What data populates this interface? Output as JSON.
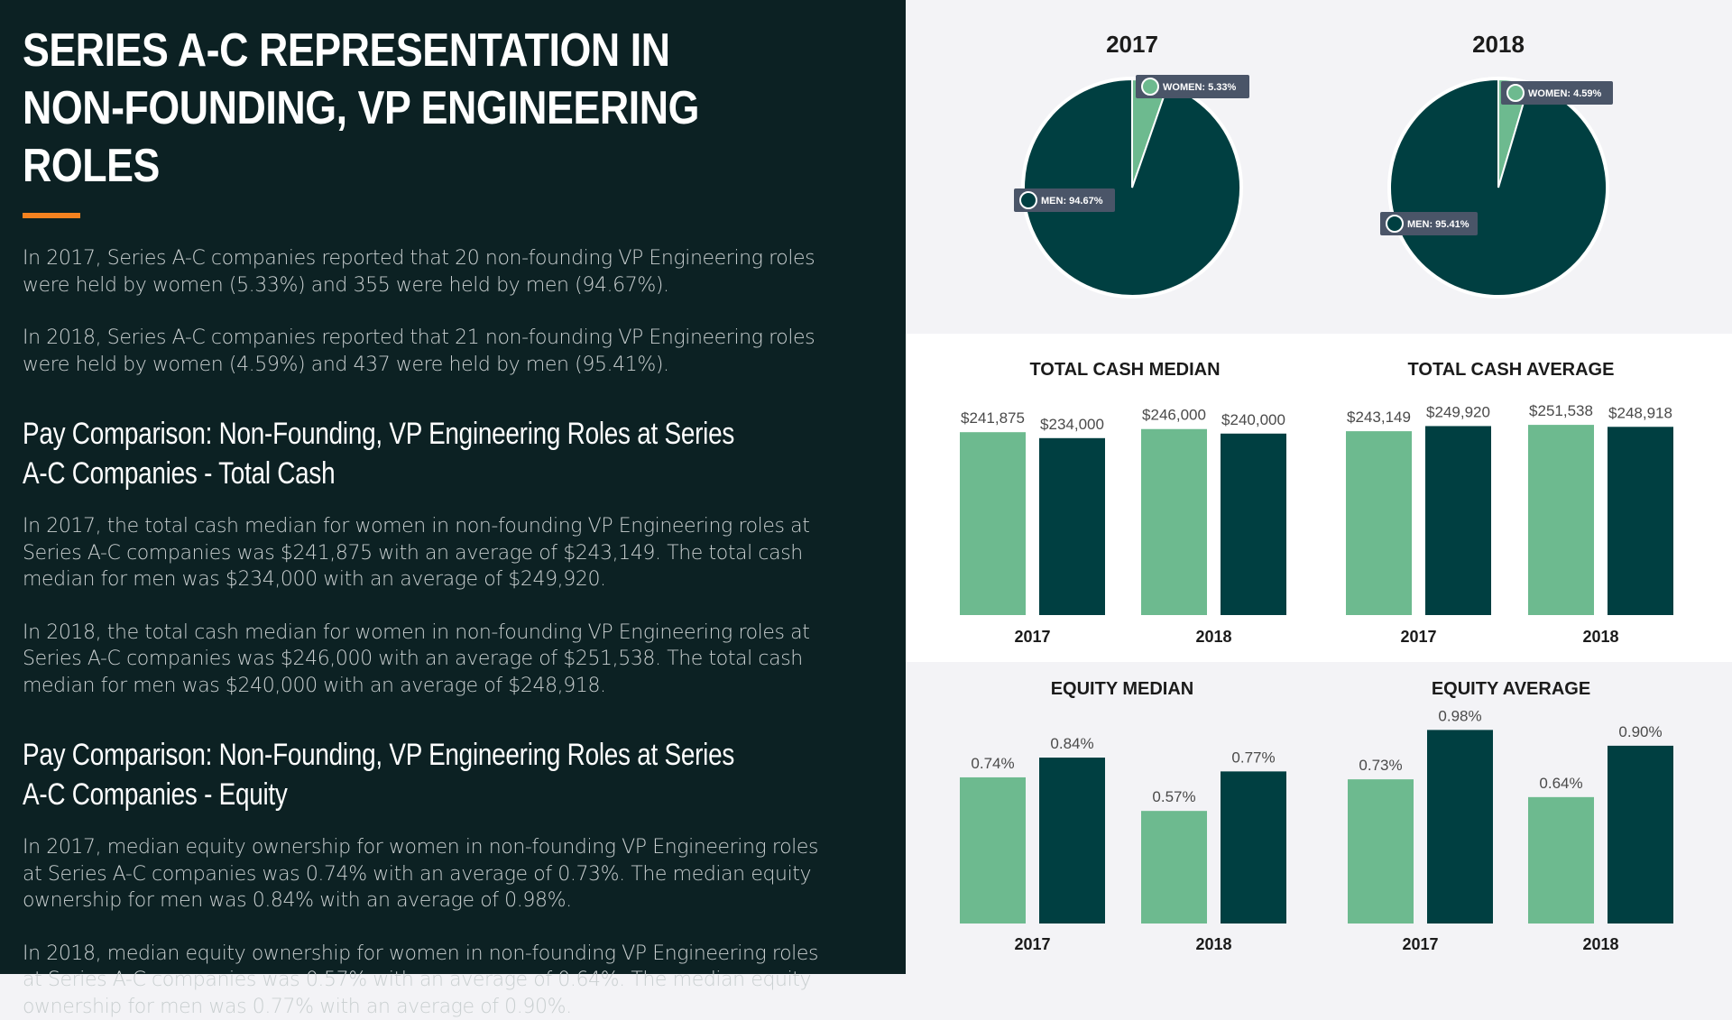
{
  "left": {
    "title": "SERIES A-C REPRESENTATION IN NON-FOUNDING, VP ENGINEERING ROLES",
    "p2017": "In 2017, Series A-C companies reported that 20 non-founding VP Engineering roles were held by women (5.33%) and 355 were held by men (94.67%).",
    "p2018": "In 2018, Series A-C companies reported that 21 non-founding VP Engineering roles were held by women (4.59%) and 437 were held by men (95.41%).",
    "cash_heading": "Pay Comparison: Non-Founding, VP Engineering Roles at Series A-C Companies - Total Cash",
    "cash_p2017": "In 2017, the total cash median for women in non-founding VP Engineering roles at Series A-C companies was $241,875 with an average of $243,149. The total cash median for men was $234,000 with an average of $249,920.",
    "cash_p2018": "In 2018, the total cash median for women in non-founding VP Engineering roles at Series A-C companies was $246,000 with an average of $251,538. The total cash median for men was $240,000 with an average of $248,918.",
    "equity_heading": "Pay Comparison: Non-Founding, VP Engineering Roles at Series A-C Companies - Equity",
    "equity_p2017": "In 2017, median equity ownership for women in non-founding VP Engineering roles at Series A-C companies was 0.74% with an average of 0.73%. The median equity ownership for men was 0.84% with an average of 0.98%.",
    "equity_p2018": "In 2018, median equity ownership for women in non-founding VP Engineering roles at Series A-C companies was 0.57% with an average of 0.64%. The median equity ownership for men was 0.77% with an average of 0.90%."
  },
  "colors": {
    "women": "#6dba8f",
    "men": "#003f41",
    "panel_bg": "#0c2123",
    "accent": "#f5821f",
    "tag_bg": "#4a5568"
  },
  "chart_data": [
    {
      "type": "pie",
      "title": "2017",
      "slices": [
        {
          "label": "WOMEN",
          "value": 5.33,
          "display": "5.33%"
        },
        {
          "label": "MEN",
          "value": 94.67,
          "display": "94.67%"
        }
      ]
    },
    {
      "type": "pie",
      "title": "2018",
      "slices": [
        {
          "label": "WOMEN",
          "value": 4.59,
          "display": "4.59%"
        },
        {
          "label": "MEN",
          "value": 95.41,
          "display": "95.41%"
        }
      ]
    },
    {
      "type": "bar",
      "title": "TOTAL CASH MEDIAN",
      "categories": [
        "2017",
        "2018"
      ],
      "series": [
        {
          "values": [
            241875,
            246000
          ],
          "labels": [
            "$241,875",
            "$246,000"
          ],
          "color_key": "women"
        },
        {
          "values": [
            234000,
            240000
          ],
          "labels": [
            "$234,000",
            "$240,000"
          ],
          "color_key": "men"
        }
      ],
      "ylim": [
        0,
        260000
      ]
    },
    {
      "type": "bar",
      "title": "TOTAL CASH AVERAGE",
      "categories": [
        "2017",
        "2018"
      ],
      "series": [
        {
          "values": [
            243149,
            251538
          ],
          "labels": [
            "$243,149",
            "$251,538"
          ],
          "color_key": "women"
        },
        {
          "values": [
            249920,
            248918
          ],
          "labels": [
            "$249,920",
            "$248,918"
          ],
          "color_key": "men"
        }
      ],
      "ylim": [
        0,
        260000
      ]
    },
    {
      "type": "bar",
      "title": "EQUITY MEDIAN",
      "categories": [
        "2017",
        "2018"
      ],
      "series": [
        {
          "values": [
            0.74,
            0.57
          ],
          "labels": [
            "0.74%",
            "0.57%"
          ],
          "color_key": "women"
        },
        {
          "values": [
            0.84,
            0.77
          ],
          "labels": [
            "0.84%",
            "0.77%"
          ],
          "color_key": "men"
        }
      ],
      "ylim": [
        0,
        1.0
      ]
    },
    {
      "type": "bar",
      "title": "EQUITY AVERAGE",
      "categories": [
        "2017",
        "2018"
      ],
      "series": [
        {
          "values": [
            0.73,
            0.64
          ],
          "labels": [
            "0.73%",
            "0.64%"
          ],
          "color_key": "women"
        },
        {
          "values": [
            0.98,
            0.9
          ],
          "labels": [
            "0.98%",
            "0.90%"
          ],
          "color_key": "men"
        }
      ],
      "ylim": [
        0,
        1.0
      ]
    }
  ]
}
